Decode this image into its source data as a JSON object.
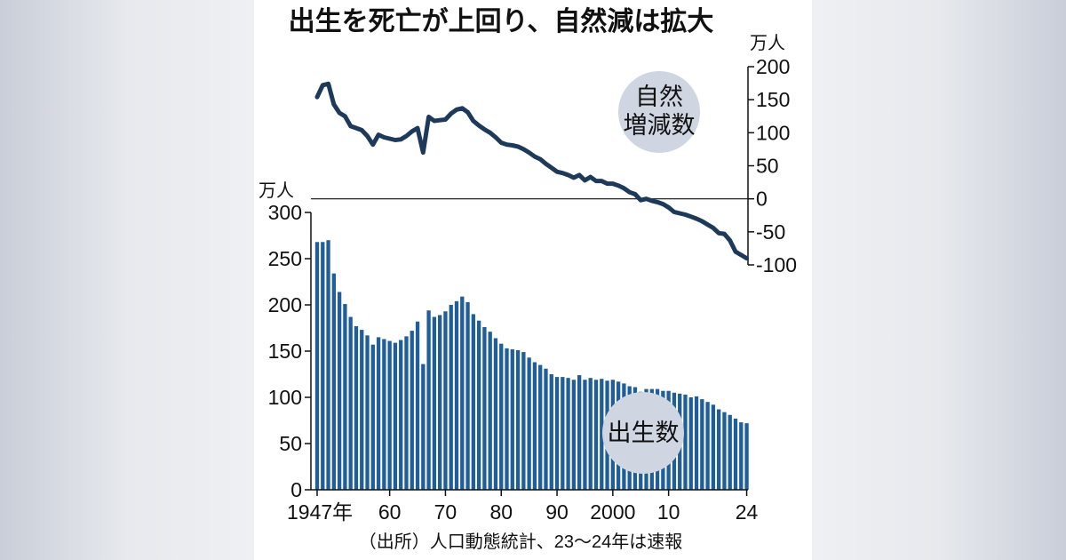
{
  "chart_data": {
    "type": "bar+line",
    "title": "出生を死亡が上回り、自然減は拡大",
    "source_note": "（出所）人口動態統計、23〜24年は速報",
    "x_tick_labels": [
      "1947年",
      "60",
      "70",
      "80",
      "90",
      "2000",
      "10",
      "24"
    ],
    "x_tick_years": [
      1947,
      1960,
      1970,
      1980,
      1990,
      2000,
      2010,
      2024
    ],
    "years": [
      1947,
      1948,
      1949,
      1950,
      1951,
      1952,
      1953,
      1954,
      1955,
      1956,
      1957,
      1958,
      1959,
      1960,
      1961,
      1962,
      1963,
      1964,
      1965,
      1966,
      1967,
      1968,
      1969,
      1970,
      1971,
      1972,
      1973,
      1974,
      1975,
      1976,
      1977,
      1978,
      1979,
      1980,
      1981,
      1982,
      1983,
      1984,
      1985,
      1986,
      1987,
      1988,
      1989,
      1990,
      1991,
      1992,
      1993,
      1994,
      1995,
      1996,
      1997,
      1998,
      1999,
      2000,
      2001,
      2002,
      2003,
      2004,
      2005,
      2006,
      2007,
      2008,
      2009,
      2010,
      2011,
      2012,
      2013,
      2014,
      2015,
      2016,
      2017,
      2018,
      2019,
      2020,
      2021,
      2022,
      2023,
      2024
    ],
    "births": {
      "label": "出生数",
      "unit": "万人",
      "ylim": [
        0,
        300
      ],
      "y_ticks": [
        0,
        50,
        100,
        150,
        200,
        250,
        300
      ],
      "values": [
        268,
        268,
        270,
        234,
        214,
        201,
        187,
        177,
        173,
        167,
        157,
        165,
        163,
        161,
        159,
        162,
        166,
        172,
        182,
        136,
        194,
        187,
        189,
        193,
        200,
        204,
        209,
        203,
        190,
        183,
        176,
        171,
        164,
        158,
        153,
        152,
        151,
        149,
        143,
        138,
        135,
        131,
        125,
        122,
        122,
        121,
        119,
        124,
        119,
        121,
        119,
        120,
        118,
        119,
        117,
        115,
        112,
        111,
        106,
        109,
        109,
        109,
        107,
        107,
        105,
        104,
        103,
        100,
        101,
        98,
        95,
        92,
        87,
        84,
        81,
        77,
        73,
        72
      ]
    },
    "natural_change": {
      "label_lines": [
        "自然",
        "増減数"
      ],
      "unit": "万人",
      "ylim": [
        -100,
        200
      ],
      "y_ticks": [
        -100,
        -50,
        0,
        50,
        100,
        150,
        200
      ],
      "values": [
        154,
        172,
        174,
        143,
        130,
        125,
        110,
        107,
        104,
        95,
        82,
        97,
        93,
        91,
        89,
        90,
        95,
        102,
        107,
        70,
        124,
        118,
        119,
        120,
        129,
        135,
        137,
        131,
        118,
        111,
        105,
        100,
        93,
        85,
        82,
        81,
        79,
        75,
        70,
        64,
        60,
        53,
        47,
        41,
        39,
        36,
        32,
        36,
        28,
        33,
        27,
        27,
        23,
        23,
        20,
        16,
        10,
        7,
        -2,
        0,
        -3,
        -5,
        -8,
        -13,
        -20,
        -22,
        -24,
        -27,
        -30,
        -34,
        -39,
        -44,
        -52,
        -53,
        -63,
        -80,
        -85,
        -90
      ]
    },
    "colors": {
      "bar": "#1f5e98",
      "line": "#1e3a5a",
      "badge": "#cfd6e2",
      "axis": "#111111"
    }
  }
}
